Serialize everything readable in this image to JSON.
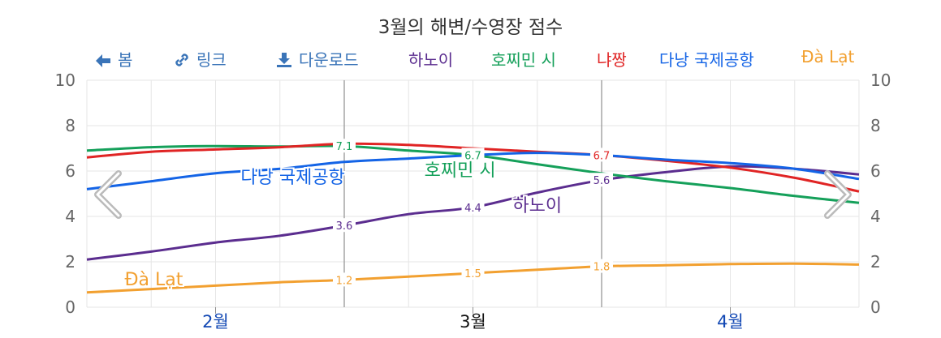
{
  "title": "3월의 해변/수영장 점수",
  "toolbar": {
    "back_label": "봄",
    "link_label": "링크",
    "download_label": "다운로드"
  },
  "colors": {
    "hanoi": "#5b2d8f",
    "hcmc": "#15a05a",
    "nhatrang": "#e02424",
    "danang": "#1464e6",
    "dalat": "#f2a030",
    "tool": "#3a74b8",
    "month_blue": "#1248b4"
  },
  "chart_data": {
    "type": "line",
    "title": "3월의 해변/수영장 점수",
    "xlabel": "",
    "ylabel": "",
    "ylim": [
      0,
      10
    ],
    "y_ticks": [
      "0",
      "2",
      "4",
      "6",
      "8",
      "10"
    ],
    "months": [
      {
        "label": "2월",
        "position": 0.5,
        "highlight": false
      },
      {
        "label": "3월",
        "position": 1.5,
        "highlight": true
      },
      {
        "label": "4월",
        "position": 2.5,
        "highlight": false
      }
    ],
    "current_month_range": [
      1,
      2
    ],
    "x_range": [
      0,
      3
    ],
    "grid": true,
    "legend_position": "top",
    "x": [
      0,
      0.25,
      0.5,
      0.75,
      1,
      1.25,
      1.5,
      1.75,
      2,
      2.25,
      2.5,
      2.75,
      3
    ],
    "series": [
      {
        "name": "하노이",
        "color_key": "hanoi",
        "values": [
          2.1,
          2.45,
          2.85,
          3.15,
          3.6,
          4.1,
          4.4,
          5.05,
          5.6,
          5.95,
          6.2,
          6.1,
          5.85
        ],
        "point_labels": [
          {
            "x": 1,
            "text": "3.6"
          },
          {
            "x": 1.5,
            "text": "4.4"
          },
          {
            "x": 2,
            "text": "5.6"
          }
        ],
        "series_label": {
          "text": "하노이",
          "x": 1.75,
          "y": 4.5
        }
      },
      {
        "name": "호찌민 시",
        "color_key": "hcmc",
        "values": [
          6.9,
          7.05,
          7.1,
          7.08,
          7.1,
          6.9,
          6.7,
          6.3,
          5.9,
          5.55,
          5.25,
          4.9,
          4.6
        ],
        "point_labels": [
          {
            "x": 1,
            "text": "7.1"
          },
          {
            "x": 1.5,
            "text": "6.7"
          }
        ],
        "series_label": {
          "text": "호찌민 시",
          "x": 1.45,
          "y": 6.05
        }
      },
      {
        "name": "냐짱",
        "color_key": "nhatrang",
        "values": [
          6.6,
          6.85,
          6.95,
          7.05,
          7.2,
          7.15,
          7.0,
          6.85,
          6.7,
          6.45,
          6.15,
          5.7,
          5.1
        ],
        "point_labels": [
          {
            "x": 2,
            "text": "6.7"
          }
        ],
        "series_label": null
      },
      {
        "name": "다낭 국제공항",
        "color_key": "danang",
        "values": [
          5.2,
          5.55,
          5.9,
          6.1,
          6.4,
          6.55,
          6.7,
          6.8,
          6.7,
          6.5,
          6.35,
          6.1,
          5.65
        ],
        "point_labels": [],
        "series_label": {
          "text": "다낭 국제공항",
          "x": 0.8,
          "y": 5.75
        }
      },
      {
        "name": "Đà Lạt",
        "color_key": "dalat",
        "values": [
          0.65,
          0.8,
          0.95,
          1.1,
          1.2,
          1.35,
          1.5,
          1.65,
          1.8,
          1.85,
          1.9,
          1.92,
          1.88
        ],
        "point_labels": [
          {
            "x": 1,
            "text": "1.2"
          },
          {
            "x": 1.5,
            "text": "1.5"
          },
          {
            "x": 2,
            "text": "1.8"
          }
        ],
        "series_label": {
          "text": "Đà Lạt",
          "x": 0.26,
          "y": 1.25
        }
      }
    ]
  }
}
